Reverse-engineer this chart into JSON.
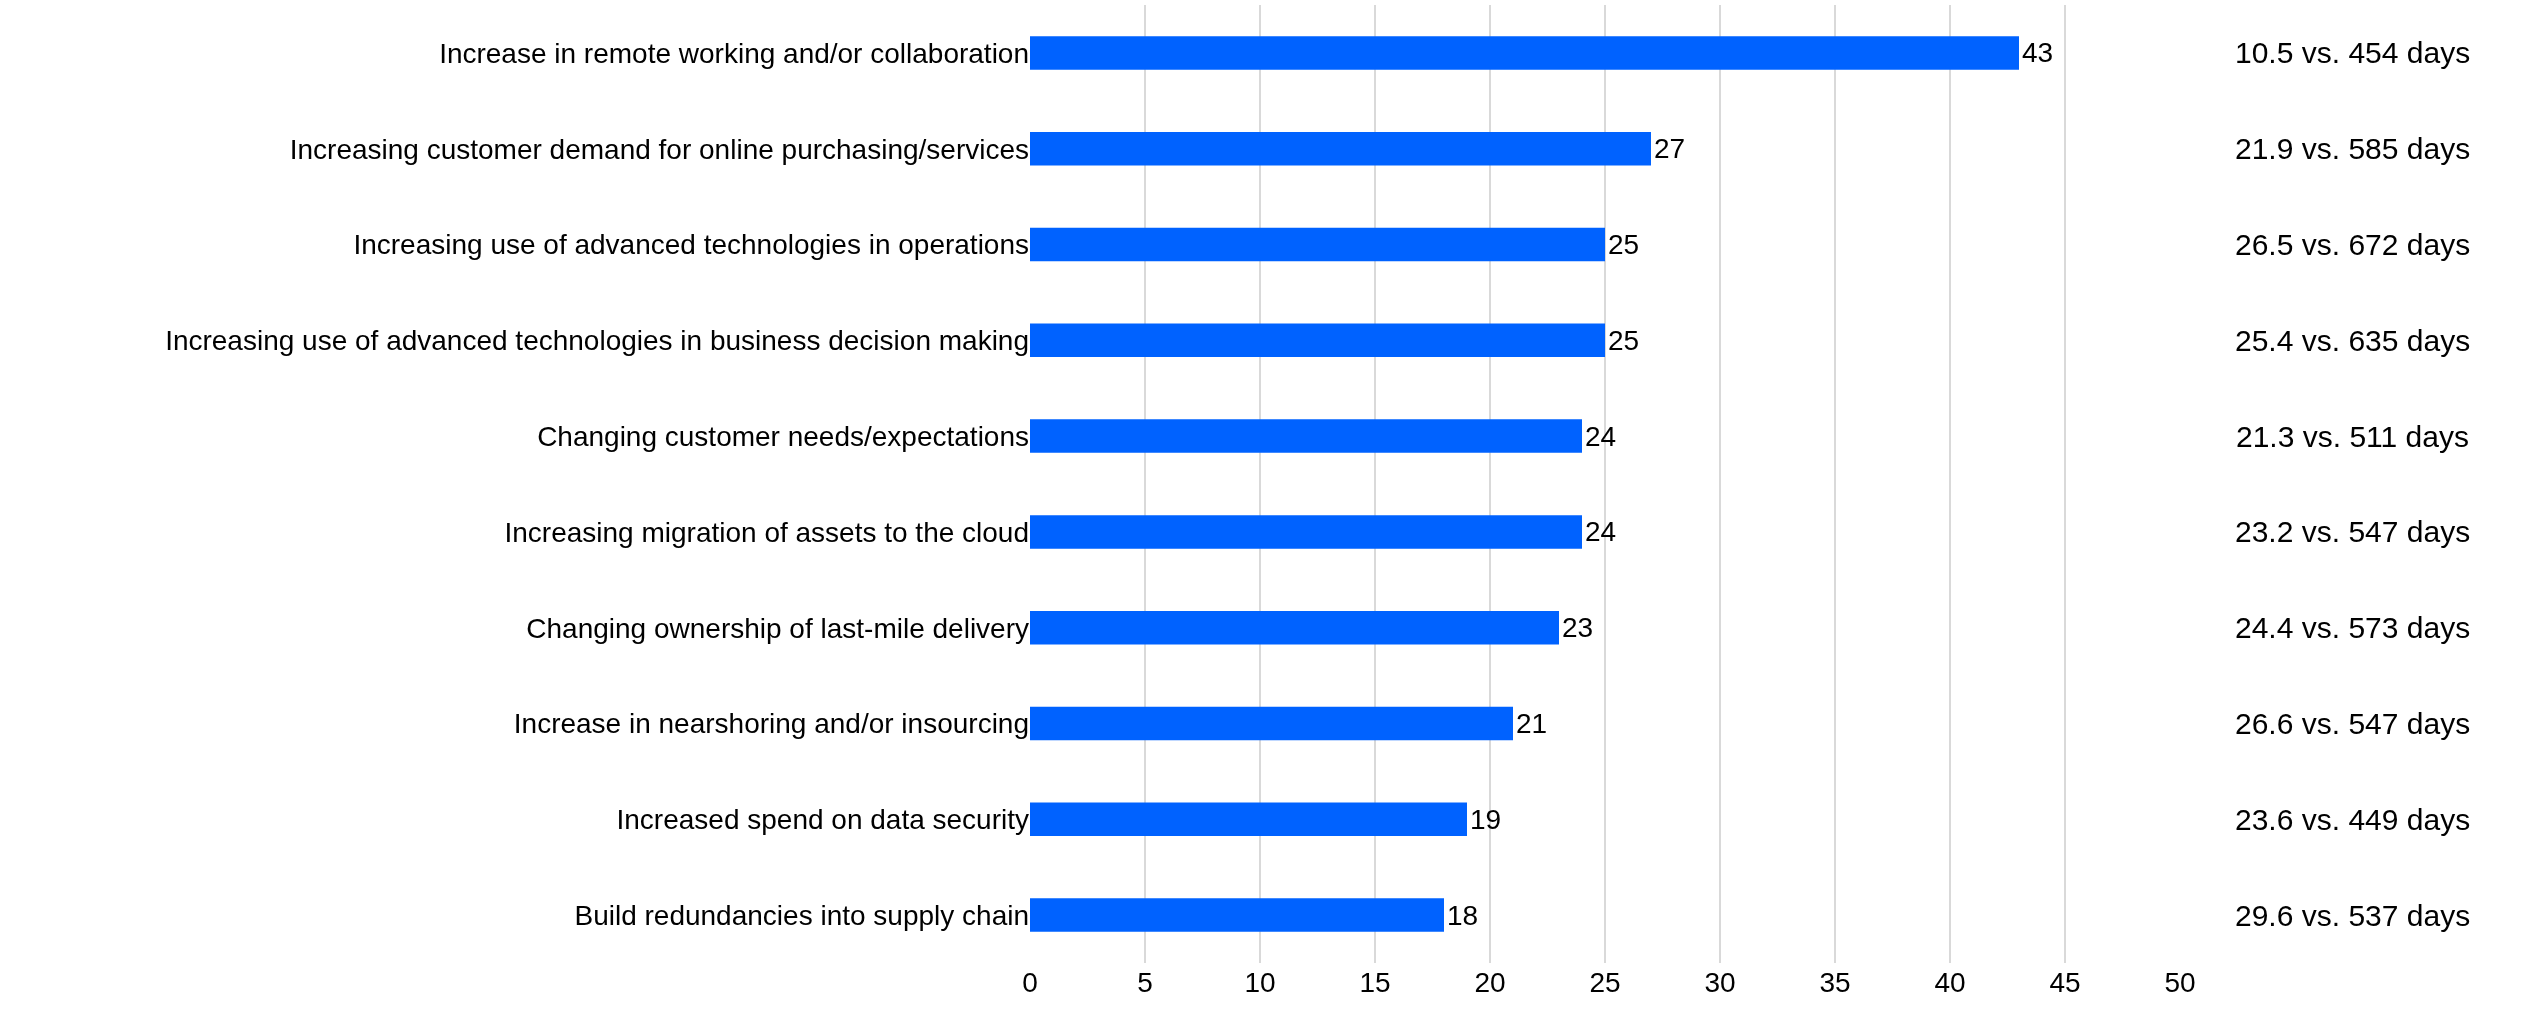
{
  "chart_data": {
    "type": "bar",
    "orientation": "horizontal",
    "categories": [
      "Increase in remote working and/or collaboration",
      "Increasing customer demand for online purchasing/services",
      "Increasing use of advanced technologies in operations",
      "Increasing use of advanced technologies in business decision making",
      "Changing customer needs/expectations",
      "Increasing migration of assets to the cloud",
      "Changing ownership of last-mile delivery",
      "Increase in nearshoring and/or insourcing",
      "Increased spend on data security",
      "Build redundancies into supply chain"
    ],
    "values": [
      43,
      27,
      25,
      25,
      24,
      24,
      23,
      21,
      19,
      18
    ],
    "color": "#0062ff",
    "xlim": [
      0,
      50
    ],
    "xticks": [
      0,
      5,
      10,
      15,
      20,
      25,
      30,
      35,
      40,
      45,
      50
    ],
    "grid": "x",
    "data_labels": true,
    "legend": false,
    "annotations": [
      "10.5 vs. 454 days",
      "21.9 vs. 585 days",
      "26.5 vs. 672 days",
      "25.4 vs. 635 days",
      "21.3 vs. 511 days",
      "23.2 vs. 547 days",
      "24.4 vs. 573 days",
      "26.6 vs. 547 days",
      "23.6 vs. 449 days",
      "29.6 vs. 537 days"
    ]
  }
}
